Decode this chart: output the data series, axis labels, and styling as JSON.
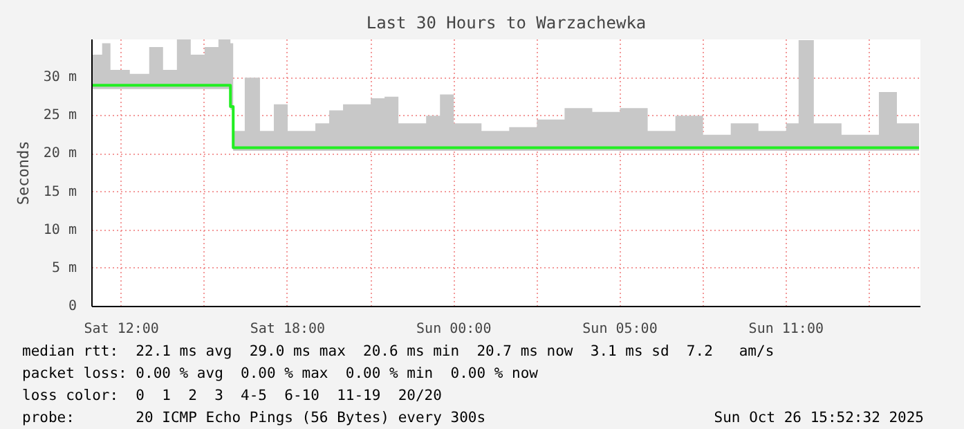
{
  "chart_data": {
    "type": "step",
    "title": "Last 30 Hours to Warzachewka",
    "ylabel": "Seconds",
    "xlim": [
      "2025-10-25T08:56",
      "2025-10-26T14:51"
    ],
    "ylim": [
      0,
      35
    ],
    "xticks": [
      {
        "value": "2025-10-25T10:00",
        "label": "Sat 12:00"
      },
      {
        "value": "2025-10-25T13:00",
        "label": null
      },
      {
        "value": "2025-10-25T16:00",
        "label": "Sat 18:00"
      },
      {
        "value": "2025-10-25T19:00",
        "label": null
      },
      {
        "value": "2025-10-25T22:00",
        "label": "Sun 00:00"
      },
      {
        "value": "2025-10-26T01:00",
        "label": null
      },
      {
        "value": "2025-10-26T04:00",
        "label": "Sun 05:00"
      },
      {
        "value": "2025-10-26T07:00",
        "label": null
      },
      {
        "value": "2025-10-26T10:00",
        "label": "Sun 11:00"
      },
      {
        "value": "2025-10-26T13:00",
        "label": null
      }
    ],
    "yticks": [
      0,
      {
        "value": 5,
        "label": "5 m"
      },
      {
        "value": 10,
        "label": "10 m"
      },
      {
        "value": 15,
        "label": "15 m"
      },
      {
        "value": 20,
        "label": "20 m"
      },
      {
        "value": 25,
        "label": "25 m"
      },
      {
        "value": 30,
        "label": "30 m"
      }
    ],
    "grid": true,
    "series": [
      {
        "color": "#22ee22",
        "x": [
          "2025-10-25T08:56",
          "2025-10-25T09:18",
          "2025-10-25T09:36",
          "2025-10-25T10:18",
          "2025-10-25T11:00",
          "2025-10-25T11:30",
          "2025-10-25T12:00",
          "2025-10-25T12:30",
          "2025-10-25T13:00",
          "2025-10-25T13:30",
          "2025-10-25T13:56",
          "2025-10-25T14:02",
          "2025-10-25T14:27",
          "2025-10-25T15:00",
          "2025-10-25T15:30",
          "2025-10-25T16:00",
          "2025-10-25T17:00",
          "2025-10-25T17:30",
          "2025-10-25T18:00",
          "2025-10-25T19:00",
          "2025-10-25T19:30",
          "2025-10-25T20:00",
          "2025-10-25T21:00",
          "2025-10-25T21:30",
          "2025-10-25T22:00",
          "2025-10-25T23:00",
          "2025-10-26T00:00",
          "2025-10-26T01:00",
          "2025-10-26T02:00",
          "2025-10-26T03:00",
          "2025-10-26T04:00",
          "2025-10-26T05:00",
          "2025-10-26T06:00",
          "2025-10-26T07:00",
          "2025-10-26T08:00",
          "2025-10-26T09:00",
          "2025-10-26T10:00",
          "2025-10-26T10:27",
          "2025-10-26T11:00",
          "2025-10-26T12:00",
          "2025-10-26T13:21",
          "2025-10-26T14:00",
          "2025-10-26T14:48"
        ],
        "values": [
          29,
          29,
          29,
          29,
          29,
          29,
          29,
          29,
          29,
          29,
          26.2,
          20.8,
          20.8,
          20.8,
          20.8,
          20.8,
          20.8,
          20.8,
          20.8,
          20.8,
          20.8,
          20.8,
          20.8,
          20.8,
          20.8,
          20.8,
          20.8,
          20.8,
          20.8,
          20.8,
          20.8,
          20.8,
          20.8,
          20.8,
          20.8,
          20.8,
          20.8,
          20.8,
          20.8,
          20.8,
          20.8,
          20.8,
          20.8
        ],
        "lower": [
          28.5,
          28.5,
          28.5,
          28.5,
          28.5,
          28.5,
          28.5,
          28.5,
          28.5,
          28.5,
          25.8,
          20.4,
          20.4,
          20.4,
          20.4,
          20.4,
          20.4,
          20.4,
          20.4,
          20.4,
          20.4,
          20.4,
          20.4,
          20.4,
          20.4,
          20.4,
          20.4,
          20.4,
          20.4,
          20.4,
          20.4,
          20.4,
          20.4,
          20.4,
          20.4,
          20.4,
          20.4,
          20.4,
          20.4,
          20.4,
          20.4,
          20.4,
          20.4
        ],
        "upper": [
          33,
          34.5,
          31,
          30.5,
          34,
          31,
          35,
          33,
          34,
          35,
          34.5,
          23,
          30,
          23,
          26.5,
          23,
          24,
          25.7,
          26.5,
          27.3,
          27.5,
          24,
          25,
          27.8,
          24,
          23,
          23.5,
          24.5,
          26,
          25.5,
          26,
          23,
          25,
          22.5,
          24,
          23,
          24,
          34.9,
          24,
          22.5,
          28.1,
          24,
          23
        ]
      }
    ],
    "annotations": [
      "median rtt:  22.1 ms avg  29.0 ms max  20.6 ms min  20.7 ms now  3.1 ms sd  7.2   am/s",
      "packet loss: 0.00 % avg  0.00 % max  0.00 % min  0.00 % now",
      "loss color:  0  1  2  3  4-5  6-10  11-19  20/20",
      "probe:       20 ICMP Echo Pings (56 Bytes) every 300s",
      "Sun Oct 26 15:52:32 2025"
    ]
  }
}
